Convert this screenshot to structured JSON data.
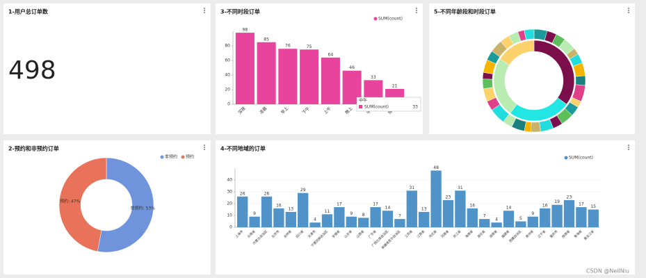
{
  "chart_data": [
    {
      "type": "number",
      "title": "1-用户总订单数",
      "value": 498
    },
    {
      "type": "bar",
      "title": "3-不同时段订单",
      "categories": [
        "深夜",
        "凌晨",
        "早上",
        "下午",
        "上午",
        "晚上",
        "中午",
        "傍晚"
      ],
      "series": [
        {
          "name": "SUM(count)",
          "color": "#e8449e",
          "values": [
            98,
            85,
            76,
            75,
            64,
            46,
            33,
            21
          ]
        }
      ],
      "ylim": [
        0,
        100
      ],
      "yticks": [
        0,
        20,
        40,
        60,
        80
      ],
      "grid": false,
      "data_labels": true,
      "tooltip": {
        "title": "中午",
        "series": "SUM(count)",
        "value": 33
      }
    },
    {
      "type": "donut",
      "title": "5-不同年龄段和时段订单",
      "rings": [
        {
          "values": [
            35,
            25,
            24,
            16
          ],
          "colors": [
            "#7b0f4c",
            "#22e6e4",
            "#b8ecb0",
            "#fcd26c"
          ]
        },
        {
          "values": [
            4,
            3,
            3,
            4,
            2,
            3,
            4,
            3,
            5,
            2,
            3,
            4,
            3,
            4,
            3,
            2,
            4,
            3,
            5,
            3,
            4,
            3,
            2,
            4,
            3,
            4,
            3,
            3,
            2,
            3
          ],
          "colors": [
            "#1a9a9a",
            "#7b0f4c",
            "#5cbf5c",
            "#b8ecb0",
            "#c9b26a",
            "#22dddd",
            "#f6b400",
            "#1a8080",
            "#e0408a",
            "#fcd26c",
            "#1a9a9a",
            "#5cbf5c",
            "#7b0f4c",
            "#22dddd",
            "#c9b26a",
            "#f6b400",
            "#1a8080",
            "#b8ecb0",
            "#22dddd",
            "#e0408a",
            "#fcd26c",
            "#5cbf5c",
            "#7b0f4c",
            "#f6b400",
            "#1a9a9a",
            "#c9b26a",
            "#fcd26c",
            "#b8ecb0",
            "#e0408a",
            "#22dddd"
          ]
        }
      ]
    },
    {
      "type": "donut",
      "title": "2-预约和非预约订单",
      "categories": [
        "非预约",
        "预约"
      ],
      "values": [
        53,
        47
      ],
      "value_labels": [
        "非预约: 53%",
        "预约: 47%"
      ],
      "colors": [
        "#7094db",
        "#e8735a"
      ],
      "legend": "top-right"
    },
    {
      "type": "bar",
      "title": "4-不同地域的订单",
      "categories": [
        "上海市",
        "云南省",
        "内蒙古自治区",
        "北京市",
        "吉林省",
        "四川省",
        "天津市",
        "宁夏回族自治区",
        "安徽省",
        "山东省",
        "山西省",
        "广东省",
        "广西壮族自治区",
        "新疆维吾尔自治区",
        "江苏省",
        "江西省",
        "河北省",
        "河南省",
        "浙江省",
        "海南省",
        "湖北省",
        "湖南省",
        "福建省",
        "西藏自治区",
        "贵州省",
        "辽宁省",
        "重庆市",
        "陕西省",
        "青海省",
        "黑龙江省"
      ],
      "series": [
        {
          "name": "SUM(count)",
          "color": "#4f93c8",
          "values": [
            26,
            9,
            26,
            16,
            13,
            29,
            4,
            11,
            17,
            9,
            8,
            17,
            14,
            7,
            31,
            13,
            48,
            23,
            31,
            16,
            7,
            4,
            14,
            5,
            9,
            16,
            19,
            23,
            17,
            15
          ]
        }
      ],
      "ylim": [
        0,
        50
      ],
      "yticks": [
        0,
        10,
        20,
        30,
        40
      ],
      "grid": true,
      "data_labels": true
    }
  ],
  "watermark": "CSDN @NeilNiu"
}
